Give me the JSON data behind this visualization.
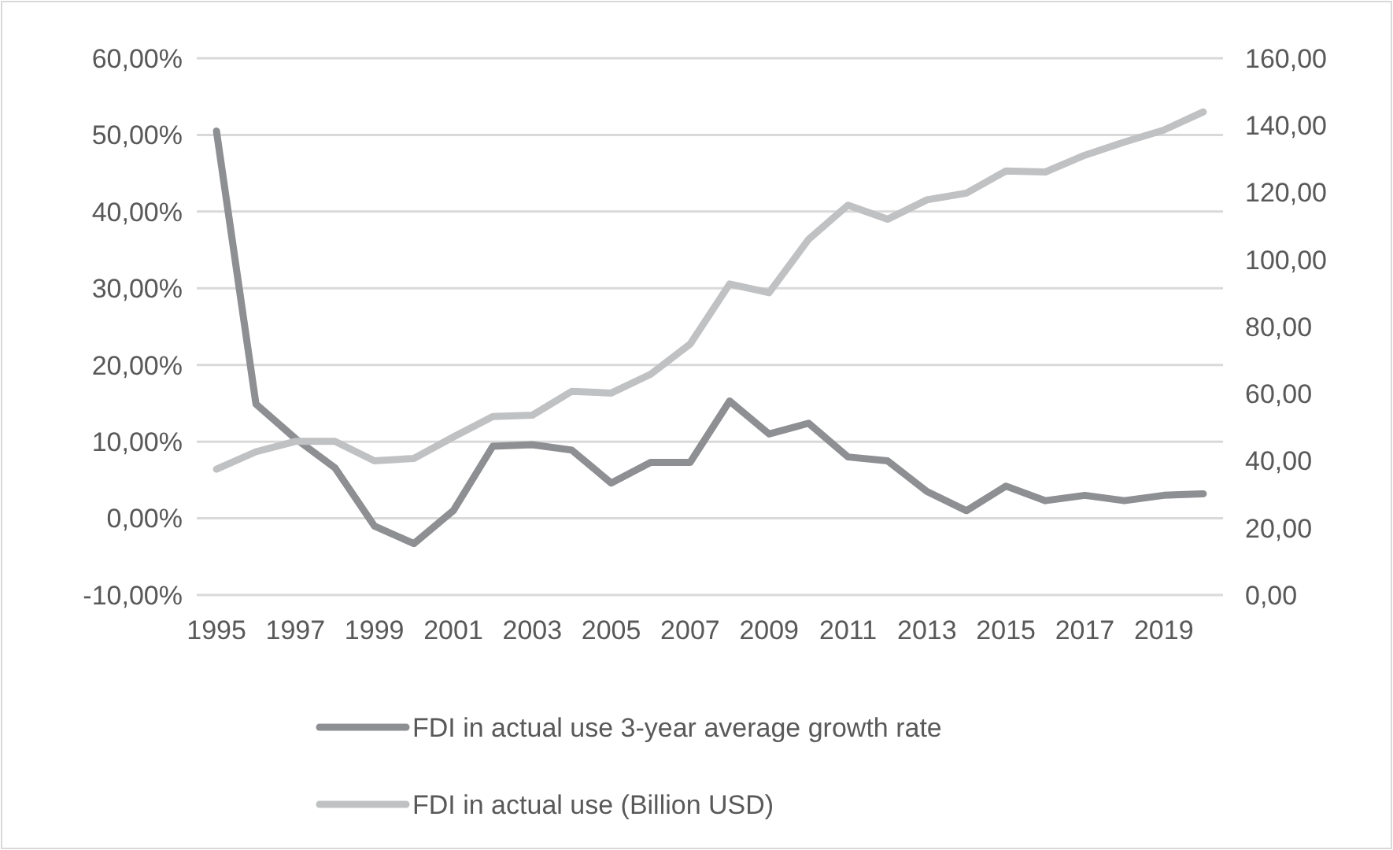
{
  "chart_data": {
    "type": "line",
    "categories": [
      "1995",
      null,
      "1997",
      null,
      "1999",
      null,
      "2001",
      null,
      "2003",
      null,
      "2005",
      null,
      "2007",
      null,
      "2009",
      null,
      "2011",
      null,
      "2013",
      null,
      "2015",
      null,
      "2017",
      null,
      "2019",
      null
    ],
    "series": [
      {
        "name": "FDI in actual use 3-year average growth rate",
        "color": "#8e8f92",
        "values": [
          50.5,
          14.9,
          10.4,
          6.6,
          -1.0,
          -3.3,
          1.0,
          9.4,
          9.6,
          8.9,
          4.6,
          7.3,
          7.3,
          15.3,
          11.0,
          12.4,
          8.0,
          7.5,
          3.5,
          1.0,
          4.2,
          2.3,
          3.0,
          2.3,
          3.0,
          3.2
        ]
      },
      {
        "name": "FDI in actual use (Billion USD)",
        "color": "#c0c1c3",
        "axis": "y2",
        "values": [
          37.5,
          42.7,
          45.8,
          45.8,
          40.0,
          40.7,
          47.1,
          53.2,
          53.6,
          60.7,
          60.2,
          65.8,
          74.8,
          92.7,
          90.1,
          106,
          116.2,
          112,
          117.8,
          119.8,
          126.4,
          126.1,
          131.1,
          135,
          138.6,
          144
        ]
      }
    ],
    "ylim": [
      -10,
      60
    ],
    "yticks": [
      {
        "value": -10,
        "label": "-10,00%"
      },
      {
        "value": 0,
        "label": "0,00%"
      },
      {
        "value": 10,
        "label": "10,00%"
      },
      {
        "value": 20,
        "label": "20,00%"
      },
      {
        "value": 30,
        "label": "30,00%"
      },
      {
        "value": 40,
        "label": "40,00%"
      },
      {
        "value": 50,
        "label": "50,00%"
      },
      {
        "value": 60,
        "label": "60,00%"
      }
    ],
    "y2lim": [
      0,
      160
    ],
    "y2ticks": [
      {
        "value": 0,
        "label": "0,00"
      },
      {
        "value": 20,
        "label": "20,00"
      },
      {
        "value": 40,
        "label": "40,00"
      },
      {
        "value": 60,
        "label": "60,00"
      },
      {
        "value": 80,
        "label": "80,00"
      },
      {
        "value": 100,
        "label": "100,00"
      },
      {
        "value": 120,
        "label": "120,00"
      },
      {
        "value": 140,
        "label": "140,00"
      },
      {
        "value": 160,
        "label": "160,00"
      }
    ],
    "grid": "y",
    "legend": "bottom",
    "marker": "none",
    "line_style": "solid"
  }
}
